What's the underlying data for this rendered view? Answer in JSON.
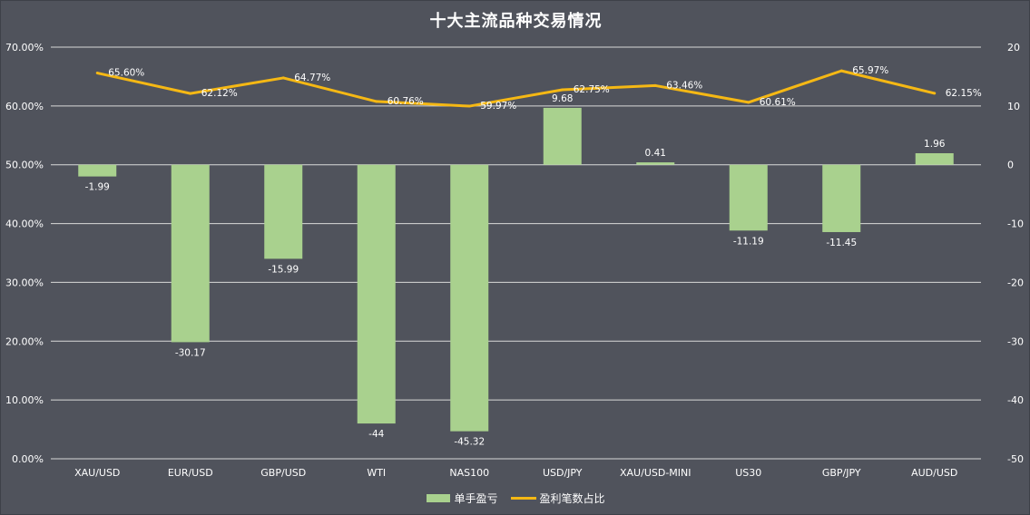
{
  "chart_data": {
    "type": "bar",
    "title": "十大主流品种交易情况",
    "categories": [
      "XAU/USD",
      "EUR/USD",
      "GBP/USD",
      "WTI",
      "NAS100",
      "USD/JPY",
      "XAU/USD-MINI",
      "US30",
      "GBP/JPY",
      "AUD/USD"
    ],
    "series": [
      {
        "name": "单手盈亏",
        "type": "bar",
        "axis": "right",
        "color": "#a9d18e",
        "values": [
          -1.99,
          -30.17,
          -15.99,
          -44,
          -45.32,
          9.68,
          0.41,
          -11.19,
          -11.45,
          1.96
        ],
        "labels": [
          "-1.99",
          "-30.17",
          "-15.99",
          "-44",
          "-45.32",
          "9.68",
          "0.41",
          "-11.19",
          "-11.45",
          "1.96"
        ]
      },
      {
        "name": "盈利笔数占比",
        "type": "line",
        "axis": "left",
        "color": "#f5b814",
        "values": [
          0.656,
          0.6212,
          0.6477,
          0.6076,
          0.5997,
          0.6275,
          0.6346,
          0.6061,
          0.6597,
          0.6215
        ],
        "labels": [
          "65.60%",
          "62.12%",
          "64.77%",
          "60.76%",
          "59.97%",
          "62.75%",
          "63.46%",
          "60.61%",
          "65.97%",
          "62.15%"
        ]
      }
    ],
    "left_axis": {
      "ticks": [
        "70.00%",
        "60.00%",
        "50.00%",
        "40.00%",
        "30.00%",
        "20.00%",
        "10.00%",
        "0.00%"
      ],
      "range": [
        0,
        0.7
      ]
    },
    "right_axis": {
      "ticks": [
        "20",
        "10",
        "0",
        "-10",
        "-20",
        "-30",
        "-40",
        "-50"
      ],
      "range": [
        -50,
        20
      ]
    },
    "grid": true,
    "legend_position": "bottom"
  }
}
